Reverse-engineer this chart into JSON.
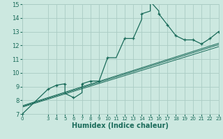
{
  "title": "",
  "xlabel": "Humidex (Indice chaleur)",
  "bg_color": "#cce8e0",
  "grid_color": "#aaccc4",
  "line_color": "#1a6b5a",
  "xlim": [
    0,
    23
  ],
  "ylim": [
    7,
    15
  ],
  "xticks": [
    0,
    3,
    4,
    5,
    6,
    7,
    8,
    9,
    10,
    11,
    12,
    13,
    14,
    15,
    16,
    17,
    18,
    19,
    20,
    21,
    22,
    23
  ],
  "yticks": [
    7,
    8,
    9,
    10,
    11,
    12,
    13,
    14,
    15
  ],
  "main_line_x": [
    0,
    3,
    4,
    5,
    5,
    6,
    6,
    7,
    7,
    8,
    9,
    10,
    11,
    12,
    13,
    14,
    14,
    15,
    15,
    16,
    16,
    17,
    18,
    19,
    20,
    21,
    22,
    23
  ],
  "main_line_y": [
    7.0,
    8.8,
    9.1,
    9.2,
    8.5,
    8.2,
    8.15,
    8.55,
    9.2,
    9.4,
    9.4,
    11.1,
    11.1,
    12.5,
    12.5,
    13.9,
    14.3,
    14.5,
    15.2,
    14.5,
    14.3,
    13.5,
    12.7,
    12.4,
    12.4,
    12.1,
    12.5,
    13.0
  ],
  "marker_x": [
    0,
    3,
    4,
    5,
    6,
    7,
    8,
    9,
    10,
    12,
    13,
    14,
    15,
    16,
    17,
    18,
    19,
    20,
    21,
    22,
    23
  ],
  "marker_y": [
    7.0,
    8.8,
    9.1,
    9.2,
    8.2,
    9.2,
    9.4,
    9.4,
    11.1,
    12.5,
    12.5,
    14.3,
    15.2,
    14.3,
    13.5,
    12.7,
    12.4,
    12.4,
    12.1,
    12.5,
    13.0
  ],
  "reg_lines": [
    {
      "x": [
        0,
        23
      ],
      "y": [
        7.5,
        11.9
      ]
    },
    {
      "x": [
        0,
        23
      ],
      "y": [
        7.55,
        12.05
      ]
    },
    {
      "x": [
        0,
        23
      ],
      "y": [
        7.6,
        12.15
      ]
    }
  ],
  "xtick_fontsize": 5.0,
  "ytick_fontsize": 6.0,
  "xlabel_fontsize": 7.0
}
